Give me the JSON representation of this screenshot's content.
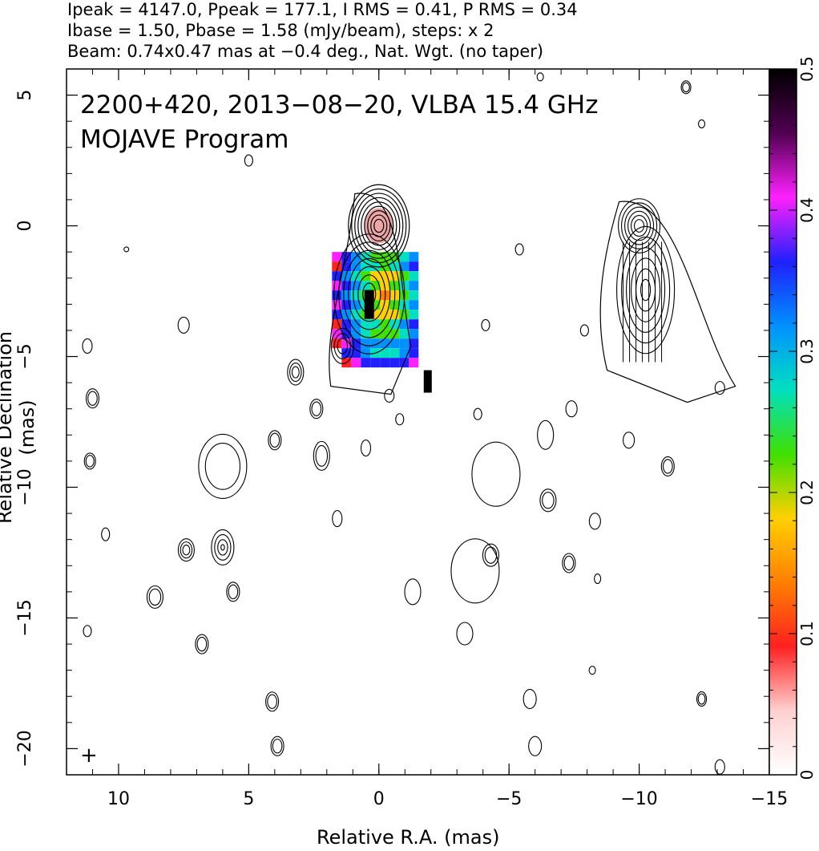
{
  "header": {
    "line1": "Ipeak = 4147.0, Ppeak = 177.1, I RMS = 0.41, P RMS = 0.34",
    "line2": "Ibase = 1.50, Pbase = 1.58 (mJy/beam), steps: x 2",
    "line3": "Beam: 0.74x0.47 mas at −0.4 deg., Nat. Wgt. (no taper)"
  },
  "chart_data": {
    "type": "contour",
    "title": "2200+420, 2013−08−20, VLBA 15.4 GHz",
    "subtitle": "MOJAVE Program",
    "xlabel": "Relative R.A. (mas)",
    "ylabel": "Relative Declination (mas)",
    "xlim": [
      12,
      -15
    ],
    "ylim": [
      -21,
      6
    ],
    "x_ticks": [
      10,
      5,
      0,
      -5,
      -10,
      -15
    ],
    "x_tick_labels": [
      "10",
      "5",
      "0",
      "−5",
      "−10",
      "−15"
    ],
    "y_ticks": [
      5,
      0,
      -5,
      -10,
      -15,
      -20
    ],
    "y_tick_labels": [
      "5",
      "0",
      "−5",
      "−10",
      "−15",
      "−20"
    ],
    "colorbar": {
      "range": [
        0,
        0.5
      ],
      "ticks": [
        0,
        0.1,
        0.2,
        0.3,
        0.4,
        0.5
      ],
      "tick_labels": [
        "0",
        "0.1",
        "0.2",
        "0.3",
        "0.4",
        "0.5"
      ],
      "colors": [
        "#ffffff",
        "#ffd0d0",
        "#ff2020",
        "#ff8000",
        "#ffd000",
        "#40e000",
        "#00e0c0",
        "#0090ff",
        "#2020ff",
        "#ff20ff",
        "#500050",
        "#000000"
      ]
    },
    "core": {
      "x": 0,
      "y": 0
    },
    "contour_levels_mJy": [
      1.5,
      3,
      6,
      12,
      24,
      48,
      96,
      192,
      384,
      768,
      1536,
      3072
    ],
    "polarization_region": {
      "x_range": [
        1.8,
        -1.2
      ],
      "y_range": [
        -1,
        -5.2
      ]
    },
    "inset_map": {
      "x": -10,
      "y": 0
    }
  }
}
